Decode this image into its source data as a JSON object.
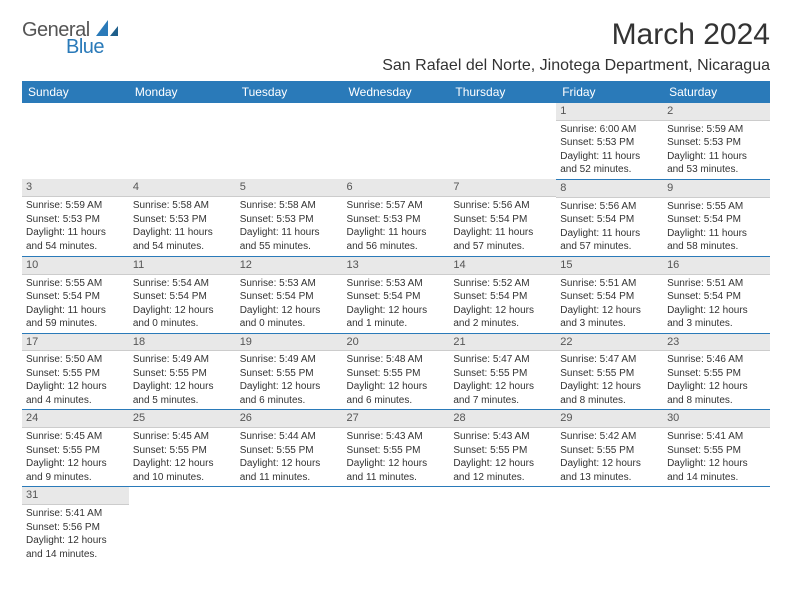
{
  "logo": {
    "general": "General",
    "blue": "Blue"
  },
  "title": "March 2024",
  "location": "San Rafael del Norte, Jinotega Department, Nicaragua",
  "colors": {
    "header_bg": "#2a7ab9",
    "header_text": "#ffffff",
    "daynum_bg": "#e8e8e8",
    "border": "#2a7ab9",
    "text": "#333333"
  },
  "weekdays": [
    "Sunday",
    "Monday",
    "Tuesday",
    "Wednesday",
    "Thursday",
    "Friday",
    "Saturday"
  ],
  "weeks": [
    [
      {
        "num": "",
        "sunrise": "",
        "sunset": "",
        "daylight": ""
      },
      {
        "num": "",
        "sunrise": "",
        "sunset": "",
        "daylight": ""
      },
      {
        "num": "",
        "sunrise": "",
        "sunset": "",
        "daylight": ""
      },
      {
        "num": "",
        "sunrise": "",
        "sunset": "",
        "daylight": ""
      },
      {
        "num": "",
        "sunrise": "",
        "sunset": "",
        "daylight": ""
      },
      {
        "num": "1",
        "sunrise": "Sunrise: 6:00 AM",
        "sunset": "Sunset: 5:53 PM",
        "daylight": "Daylight: 11 hours and 52 minutes."
      },
      {
        "num": "2",
        "sunrise": "Sunrise: 5:59 AM",
        "sunset": "Sunset: 5:53 PM",
        "daylight": "Daylight: 11 hours and 53 minutes."
      }
    ],
    [
      {
        "num": "3",
        "sunrise": "Sunrise: 5:59 AM",
        "sunset": "Sunset: 5:53 PM",
        "daylight": "Daylight: 11 hours and 54 minutes."
      },
      {
        "num": "4",
        "sunrise": "Sunrise: 5:58 AM",
        "sunset": "Sunset: 5:53 PM",
        "daylight": "Daylight: 11 hours and 54 minutes."
      },
      {
        "num": "5",
        "sunrise": "Sunrise: 5:58 AM",
        "sunset": "Sunset: 5:53 PM",
        "daylight": "Daylight: 11 hours and 55 minutes."
      },
      {
        "num": "6",
        "sunrise": "Sunrise: 5:57 AM",
        "sunset": "Sunset: 5:53 PM",
        "daylight": "Daylight: 11 hours and 56 minutes."
      },
      {
        "num": "7",
        "sunrise": "Sunrise: 5:56 AM",
        "sunset": "Sunset: 5:54 PM",
        "daylight": "Daylight: 11 hours and 57 minutes."
      },
      {
        "num": "8",
        "sunrise": "Sunrise: 5:56 AM",
        "sunset": "Sunset: 5:54 PM",
        "daylight": "Daylight: 11 hours and 57 minutes."
      },
      {
        "num": "9",
        "sunrise": "Sunrise: 5:55 AM",
        "sunset": "Sunset: 5:54 PM",
        "daylight": "Daylight: 11 hours and 58 minutes."
      }
    ],
    [
      {
        "num": "10",
        "sunrise": "Sunrise: 5:55 AM",
        "sunset": "Sunset: 5:54 PM",
        "daylight": "Daylight: 11 hours and 59 minutes."
      },
      {
        "num": "11",
        "sunrise": "Sunrise: 5:54 AM",
        "sunset": "Sunset: 5:54 PM",
        "daylight": "Daylight: 12 hours and 0 minutes."
      },
      {
        "num": "12",
        "sunrise": "Sunrise: 5:53 AM",
        "sunset": "Sunset: 5:54 PM",
        "daylight": "Daylight: 12 hours and 0 minutes."
      },
      {
        "num": "13",
        "sunrise": "Sunrise: 5:53 AM",
        "sunset": "Sunset: 5:54 PM",
        "daylight": "Daylight: 12 hours and 1 minute."
      },
      {
        "num": "14",
        "sunrise": "Sunrise: 5:52 AM",
        "sunset": "Sunset: 5:54 PM",
        "daylight": "Daylight: 12 hours and 2 minutes."
      },
      {
        "num": "15",
        "sunrise": "Sunrise: 5:51 AM",
        "sunset": "Sunset: 5:54 PM",
        "daylight": "Daylight: 12 hours and 3 minutes."
      },
      {
        "num": "16",
        "sunrise": "Sunrise: 5:51 AM",
        "sunset": "Sunset: 5:54 PM",
        "daylight": "Daylight: 12 hours and 3 minutes."
      }
    ],
    [
      {
        "num": "17",
        "sunrise": "Sunrise: 5:50 AM",
        "sunset": "Sunset: 5:55 PM",
        "daylight": "Daylight: 12 hours and 4 minutes."
      },
      {
        "num": "18",
        "sunrise": "Sunrise: 5:49 AM",
        "sunset": "Sunset: 5:55 PM",
        "daylight": "Daylight: 12 hours and 5 minutes."
      },
      {
        "num": "19",
        "sunrise": "Sunrise: 5:49 AM",
        "sunset": "Sunset: 5:55 PM",
        "daylight": "Daylight: 12 hours and 6 minutes."
      },
      {
        "num": "20",
        "sunrise": "Sunrise: 5:48 AM",
        "sunset": "Sunset: 5:55 PM",
        "daylight": "Daylight: 12 hours and 6 minutes."
      },
      {
        "num": "21",
        "sunrise": "Sunrise: 5:47 AM",
        "sunset": "Sunset: 5:55 PM",
        "daylight": "Daylight: 12 hours and 7 minutes."
      },
      {
        "num": "22",
        "sunrise": "Sunrise: 5:47 AM",
        "sunset": "Sunset: 5:55 PM",
        "daylight": "Daylight: 12 hours and 8 minutes."
      },
      {
        "num": "23",
        "sunrise": "Sunrise: 5:46 AM",
        "sunset": "Sunset: 5:55 PM",
        "daylight": "Daylight: 12 hours and 8 minutes."
      }
    ],
    [
      {
        "num": "24",
        "sunrise": "Sunrise: 5:45 AM",
        "sunset": "Sunset: 5:55 PM",
        "daylight": "Daylight: 12 hours and 9 minutes."
      },
      {
        "num": "25",
        "sunrise": "Sunrise: 5:45 AM",
        "sunset": "Sunset: 5:55 PM",
        "daylight": "Daylight: 12 hours and 10 minutes."
      },
      {
        "num": "26",
        "sunrise": "Sunrise: 5:44 AM",
        "sunset": "Sunset: 5:55 PM",
        "daylight": "Daylight: 12 hours and 11 minutes."
      },
      {
        "num": "27",
        "sunrise": "Sunrise: 5:43 AM",
        "sunset": "Sunset: 5:55 PM",
        "daylight": "Daylight: 12 hours and 11 minutes."
      },
      {
        "num": "28",
        "sunrise": "Sunrise: 5:43 AM",
        "sunset": "Sunset: 5:55 PM",
        "daylight": "Daylight: 12 hours and 12 minutes."
      },
      {
        "num": "29",
        "sunrise": "Sunrise: 5:42 AM",
        "sunset": "Sunset: 5:55 PM",
        "daylight": "Daylight: 12 hours and 13 minutes."
      },
      {
        "num": "30",
        "sunrise": "Sunrise: 5:41 AM",
        "sunset": "Sunset: 5:55 PM",
        "daylight": "Daylight: 12 hours and 14 minutes."
      }
    ],
    [
      {
        "num": "31",
        "sunrise": "Sunrise: 5:41 AM",
        "sunset": "Sunset: 5:56 PM",
        "daylight": "Daylight: 12 hours and 14 minutes."
      },
      {
        "num": "",
        "sunrise": "",
        "sunset": "",
        "daylight": ""
      },
      {
        "num": "",
        "sunrise": "",
        "sunset": "",
        "daylight": ""
      },
      {
        "num": "",
        "sunrise": "",
        "sunset": "",
        "daylight": ""
      },
      {
        "num": "",
        "sunrise": "",
        "sunset": "",
        "daylight": ""
      },
      {
        "num": "",
        "sunrise": "",
        "sunset": "",
        "daylight": ""
      },
      {
        "num": "",
        "sunrise": "",
        "sunset": "",
        "daylight": ""
      }
    ]
  ]
}
